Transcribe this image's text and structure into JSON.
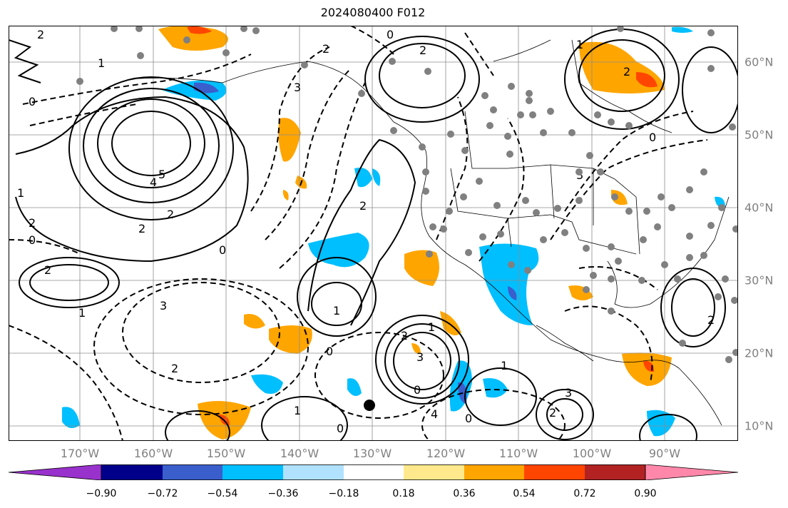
{
  "title": "2024080400 F012",
  "lon_labels": [
    "170°W",
    "160°W",
    "150°W",
    "140°W",
    "130°W",
    "120°W",
    "110°W",
    "100°W",
    "90°W"
  ],
  "lat_labels": [
    "60°N",
    "50°N",
    "40°N",
    "30°N",
    "20°N",
    "10°N"
  ],
  "colorbar": {
    "ticks": [
      "−0.90",
      "−0.72",
      "−0.54",
      "−0.36",
      "−0.18",
      "0.18",
      "0.36",
      "0.54",
      "0.72",
      "0.90"
    ],
    "colors": [
      "#9932cc",
      "#00008b",
      "#3a5fcd",
      "#00bfff",
      "#b0e2ff",
      "#ffffff",
      "#ffe98c",
      "#ffa500",
      "#ff4500",
      "#b22222",
      "#ff88aa"
    ]
  },
  "contour_labels": [
    "0",
    "2",
    "1",
    "4",
    "5",
    "2",
    "2",
    "1",
    "2",
    "0",
    "2",
    "3",
    "2",
    "0",
    "1",
    "2",
    "3",
    "0",
    "1",
    "2",
    "0",
    "1",
    "2",
    "3",
    "1",
    "2",
    "0",
    "0",
    "4",
    "3",
    "2",
    "1",
    "2",
    "0",
    "1",
    "3",
    "2",
    "0"
  ],
  "colors": {
    "shade_orange": "#ffa500",
    "shade_cyan": "#00bfff",
    "shade_blue": "#3a5fcd",
    "shade_red": "#ff4500",
    "point_gray": "#808080"
  }
}
